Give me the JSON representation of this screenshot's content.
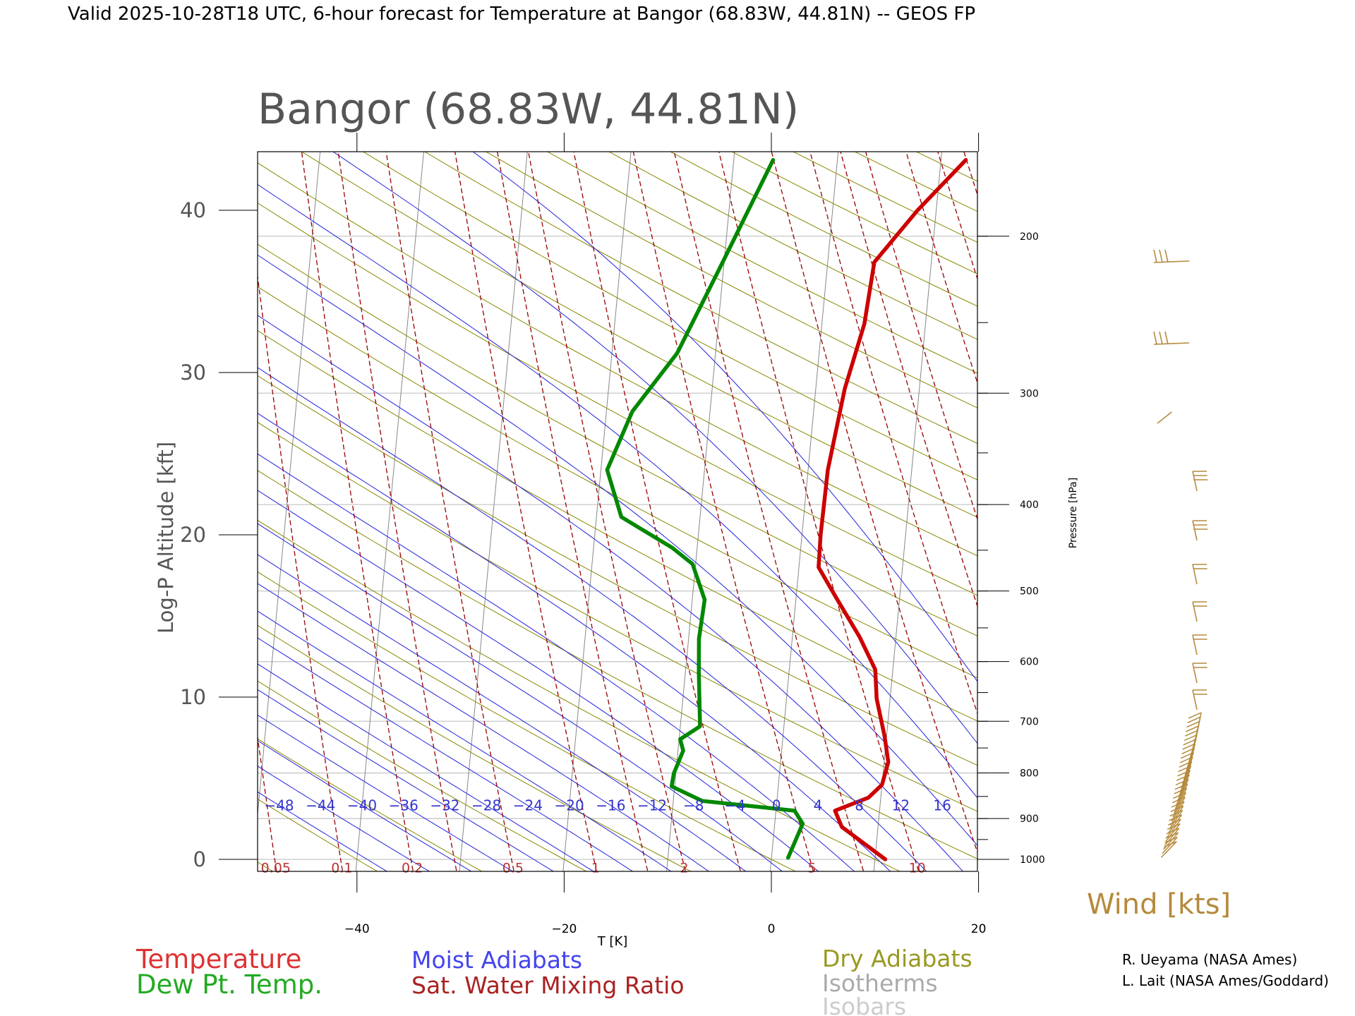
{
  "chart_data": {
    "type": "line",
    "title": "Valid 2025-10-28T18 UTC, 6-hour forecast for Temperature at Bangor (68.83W, 44.81N) -- GEOS FP",
    "subtitle": "Bangor (68.83W, 44.81N)",
    "xlabel": "T [K]",
    "ylabel": "Log-P Altitude [kft]",
    "y2label": "Pressure [hPa]",
    "x_ticks": [
      "−40",
      "−20",
      "0",
      "20"
    ],
    "y_ticks": [
      "0",
      "10",
      "20",
      "30",
      "40"
    ],
    "p_ticks": [
      "200",
      "300",
      "400",
      "500",
      "600",
      "700",
      "800",
      "900",
      "1000"
    ],
    "moist_adiabat_labels": [
      "−48",
      "−44",
      "−40",
      "−36",
      "−32",
      "−28",
      "−24",
      "−20",
      "−16",
      "−12",
      "−8",
      "−4",
      "0",
      "4",
      "8",
      "12",
      "16"
    ],
    "mixing_ratio_labels": [
      "0.05",
      "0.1",
      "0.2",
      "0.5",
      "1",
      "2",
      "5",
      "10"
    ],
    "series": [
      {
        "name": "Temperature",
        "color": "#cc0000",
        "points": [
          [
            11.0,
            0.0
          ],
          [
            6.5,
            2.0
          ],
          [
            5.7,
            3.0
          ],
          [
            8.8,
            3.8
          ],
          [
            10.0,
            4.6
          ],
          [
            10.4,
            6.0
          ],
          [
            9.8,
            7.6
          ],
          [
            8.7,
            9.9
          ],
          [
            8.3,
            11.7
          ],
          [
            6.5,
            13.7
          ],
          [
            3.9,
            16.1
          ],
          [
            1.9,
            18.0
          ],
          [
            1.8,
            20.0
          ],
          [
            1.9,
            24.0
          ],
          [
            2.8,
            29.0
          ],
          [
            4.1,
            33.0
          ],
          [
            4.5,
            36.8
          ],
          [
            8.2,
            40.0
          ],
          [
            12.4,
            43.1
          ]
        ]
      },
      {
        "name": "Dew Pt. Temp.",
        "color": "#008800",
        "points": [
          [
            1.6,
            0.1
          ],
          [
            2.7,
            2.2
          ],
          [
            1.8,
            3.0
          ],
          [
            -7.2,
            3.6
          ],
          [
            -10.3,
            4.5
          ],
          [
            -10.2,
            5.3
          ],
          [
            -9.5,
            6.7
          ],
          [
            -9.9,
            7.4
          ],
          [
            -8.1,
            8.2
          ],
          [
            -8.7,
            11.5
          ],
          [
            -9.0,
            13.6
          ],
          [
            -8.8,
            16.0
          ],
          [
            -10.3,
            18.2
          ],
          [
            -12.4,
            19.2
          ],
          [
            -17.6,
            21.1
          ],
          [
            -19.4,
            24.0
          ],
          [
            -17.5,
            27.6
          ],
          [
            -13.7,
            31.2
          ],
          [
            -10.2,
            36.7
          ],
          [
            -6.2,
            43.1
          ]
        ]
      }
    ],
    "wind_barbs_label": "Wind [kts]",
    "legend": [
      "Temperature",
      "Dew Pt. Temp.",
      "Moist Adiabats",
      "Sat. Water Mixing Ratio",
      "Dry Adiabats",
      "Isotherms",
      "Isobars"
    ],
    "credits": [
      "R. Ueyama (NASA Ames)",
      "L. Lait (NASA Ames/Goddard)"
    ],
    "colors": {
      "temperature": "#cc0000",
      "dewpoint": "#008800",
      "moist": "#2222dd",
      "mixing": "#990000",
      "dry": "#888800",
      "isotherm": "#888888",
      "isobar": "#c8c8c8",
      "wind": "#b58a3c"
    }
  }
}
